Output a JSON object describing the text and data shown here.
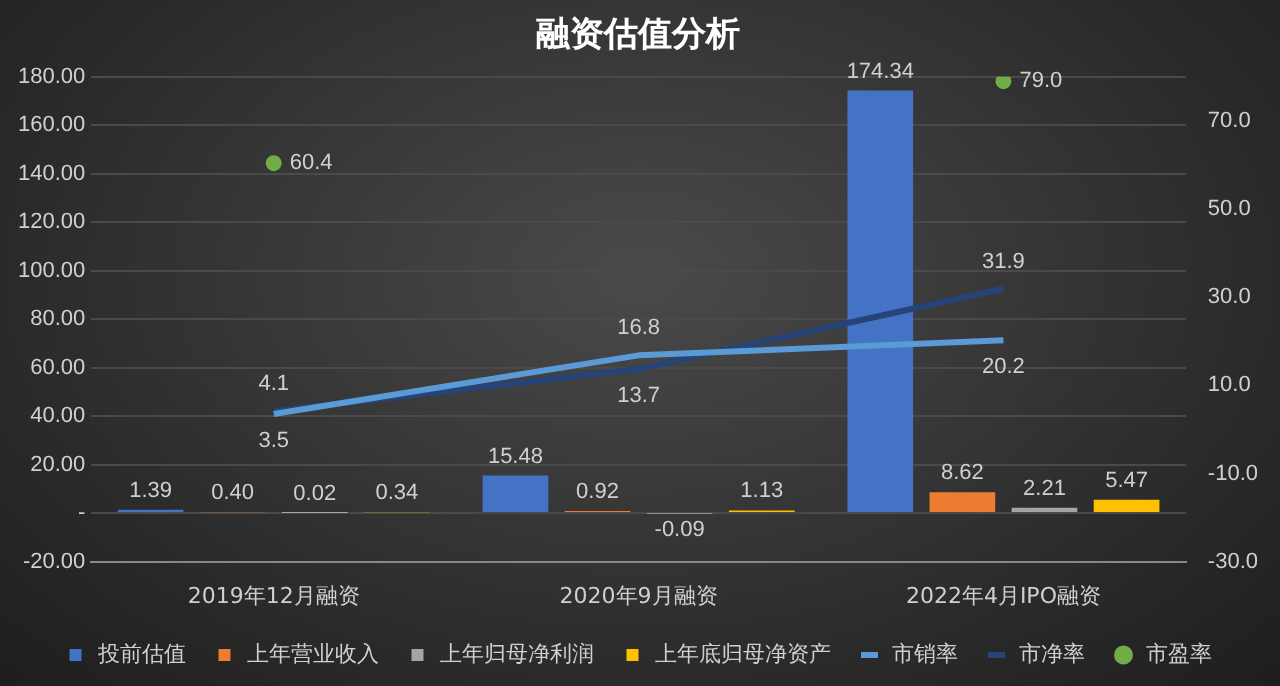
{
  "chart_data": {
    "type": "bar",
    "title": "融资估值分析",
    "categories": [
      "2019年12月融资",
      "2020年9月融资",
      "2022年4月IPO融资"
    ],
    "series": [
      {
        "name": "投前估值",
        "color": "#4472c4",
        "values": [
          1.39,
          15.48,
          174.34
        ],
        "value_labels": [
          "1.39",
          "15.48",
          "174.34"
        ]
      },
      {
        "name": "上年营业收入",
        "color": "#ed7d31",
        "values": [
          0.4,
          0.92,
          8.62
        ],
        "value_labels": [
          "0.40",
          "0.92",
          "8.62"
        ]
      },
      {
        "name": "上年归母净利润",
        "color": "#a5a5a5",
        "values": [
          0.02,
          -0.09,
          2.21
        ],
        "value_labels": [
          "0.02",
          "-0.09",
          "2.21"
        ]
      },
      {
        "name": "上年底归母净资产",
        "color": "#ffc000",
        "values": [
          0.34,
          1.13,
          5.47
        ],
        "value_labels": [
          "0.34",
          "1.13",
          "5.47"
        ]
      },
      {
        "name": "市销率",
        "type": "line",
        "axis": "y2",
        "marker": "none",
        "color": "#5b9bd5",
        "values": [
          3.5,
          16.8,
          20.2
        ],
        "value_labels": [
          "3.5",
          "16.8",
          "20.2"
        ]
      },
      {
        "name": "市净率",
        "type": "line",
        "axis": "y2",
        "marker": "none",
        "color": "#264478",
        "values": [
          4.1,
          13.7,
          31.9
        ],
        "value_labels": [
          "4.1",
          "13.7",
          "31.9"
        ]
      },
      {
        "name": "市盈率",
        "type": "scatter",
        "axis": "y2",
        "marker": "circle",
        "color": "#70ad47",
        "values": [
          60.4,
          null,
          79
        ],
        "value_labels": [
          "60.4",
          null,
          "79.0"
        ]
      }
    ],
    "ylim": [
      -20,
      180
    ],
    "yticks": [
      {
        "value": -20,
        "label": "-20.00"
      },
      {
        "value": 0,
        "label": "-"
      },
      {
        "value": 20,
        "label": "20.00"
      },
      {
        "value": 40,
        "label": "40.00"
      },
      {
        "value": 60,
        "label": "60.00"
      },
      {
        "value": 80,
        "label": "80.00"
      },
      {
        "value": 100,
        "label": "100.00"
      },
      {
        "value": 120,
        "label": "120.00"
      },
      {
        "value": 140,
        "label": "140.00"
      },
      {
        "value": 160,
        "label": "160.00"
      },
      {
        "value": 180,
        "label": "180.00"
      }
    ],
    "y2lim": [
      -30,
      80
    ],
    "y2ticks": [
      {
        "value": -30,
        "label": "-30.0"
      },
      {
        "value": -10,
        "label": "-10.0"
      },
      {
        "value": 10,
        "label": "10.0"
      },
      {
        "value": 30,
        "label": "30.0"
      },
      {
        "value": 50,
        "label": "50.0"
      },
      {
        "value": 70,
        "label": "70.0"
      }
    ],
    "grid": "y",
    "legend": "bottom"
  }
}
